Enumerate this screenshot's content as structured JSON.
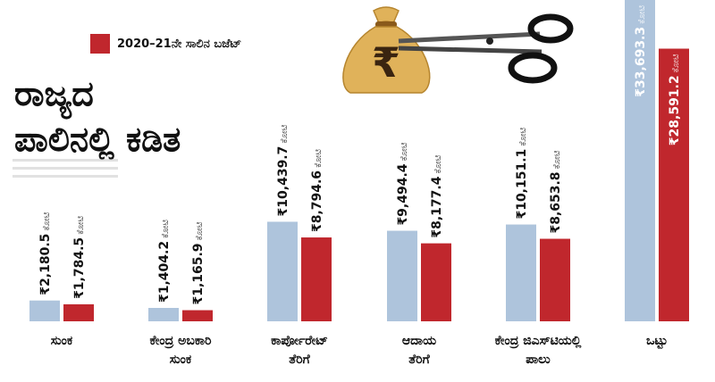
{
  "legend": {
    "label": "2020–21ನೇ ಸಾಲಿನ ಬಜೆಟ್",
    "color": "#c0272d"
  },
  "headline": {
    "line1": "ರಾಜ್ಯದ",
    "line2": "ಪಾಲಿನಲ್ಲಿ ಕಡಿತ"
  },
  "colors": {
    "light": "#aec4dc",
    "dark": "#c0272d",
    "bag": "#e0b25a"
  },
  "icons": [
    "money-bag-icon",
    "rupee-icon",
    "scissors-icon"
  ],
  "chart_data": {
    "type": "bar",
    "unit": "ಕೋಟಿ",
    "categories": [
      "ಸುಂಕ",
      "ಕೇಂದ್ರ ಅಬಕಾರಿ ಸುಂಕ",
      "ಕಾರ್ಪೋರೇಟ್ ತೆರಿಗೆ",
      "ಆದಾಯ ತೆರಿಗೆ",
      "ಕೇಂದ್ರ ಜಿಎಸ್‌ಟಿಯಲ್ಲಿ ಪಾಲು",
      "ಒಟ್ಟು"
    ],
    "category_lines": [
      [
        "ಸುಂಕ"
      ],
      [
        "ಕೇಂದ್ರ ಅಬಕಾರಿ",
        "ಸುಂಕ"
      ],
      [
        "ಕಾರ್ಪೋರೇಟ್",
        "ತೆರಿಗೆ"
      ],
      [
        "ಆದಾಯ",
        "ತೆರಿಗೆ"
      ],
      [
        "ಕೇಂದ್ರ ಜಿಎಸ್‌ಟಿಯಲ್ಲಿ",
        "ಪಾಲು"
      ],
      [
        "ಒಟ್ಟು"
      ]
    ],
    "series": [
      {
        "values": [
          2180.5,
          1404.2,
          10439.7,
          9494.4,
          10151.1,
          33693.3
        ],
        "labels": [
          "₹2,180.5",
          "₹1,404.2",
          "₹10,439.7",
          "₹9,494.4",
          "₹10,151.1",
          "₹33,693.3"
        ],
        "color": "#aec4dc"
      },
      {
        "name": "2020–21ನೇ ಸಾಲಿನ ಬಜೆಟ್",
        "values": [
          1784.5,
          1165.9,
          8794.6,
          8177.4,
          8653.8,
          28591.2
        ],
        "labels": [
          "₹1,784.5",
          "₹1,165.9",
          "₹8,794.6",
          "₹8,177.4",
          "₹8,653.8",
          "₹28,591.2"
        ],
        "color": "#c0272d"
      }
    ],
    "legend_position": "top-left",
    "grid": false
  }
}
